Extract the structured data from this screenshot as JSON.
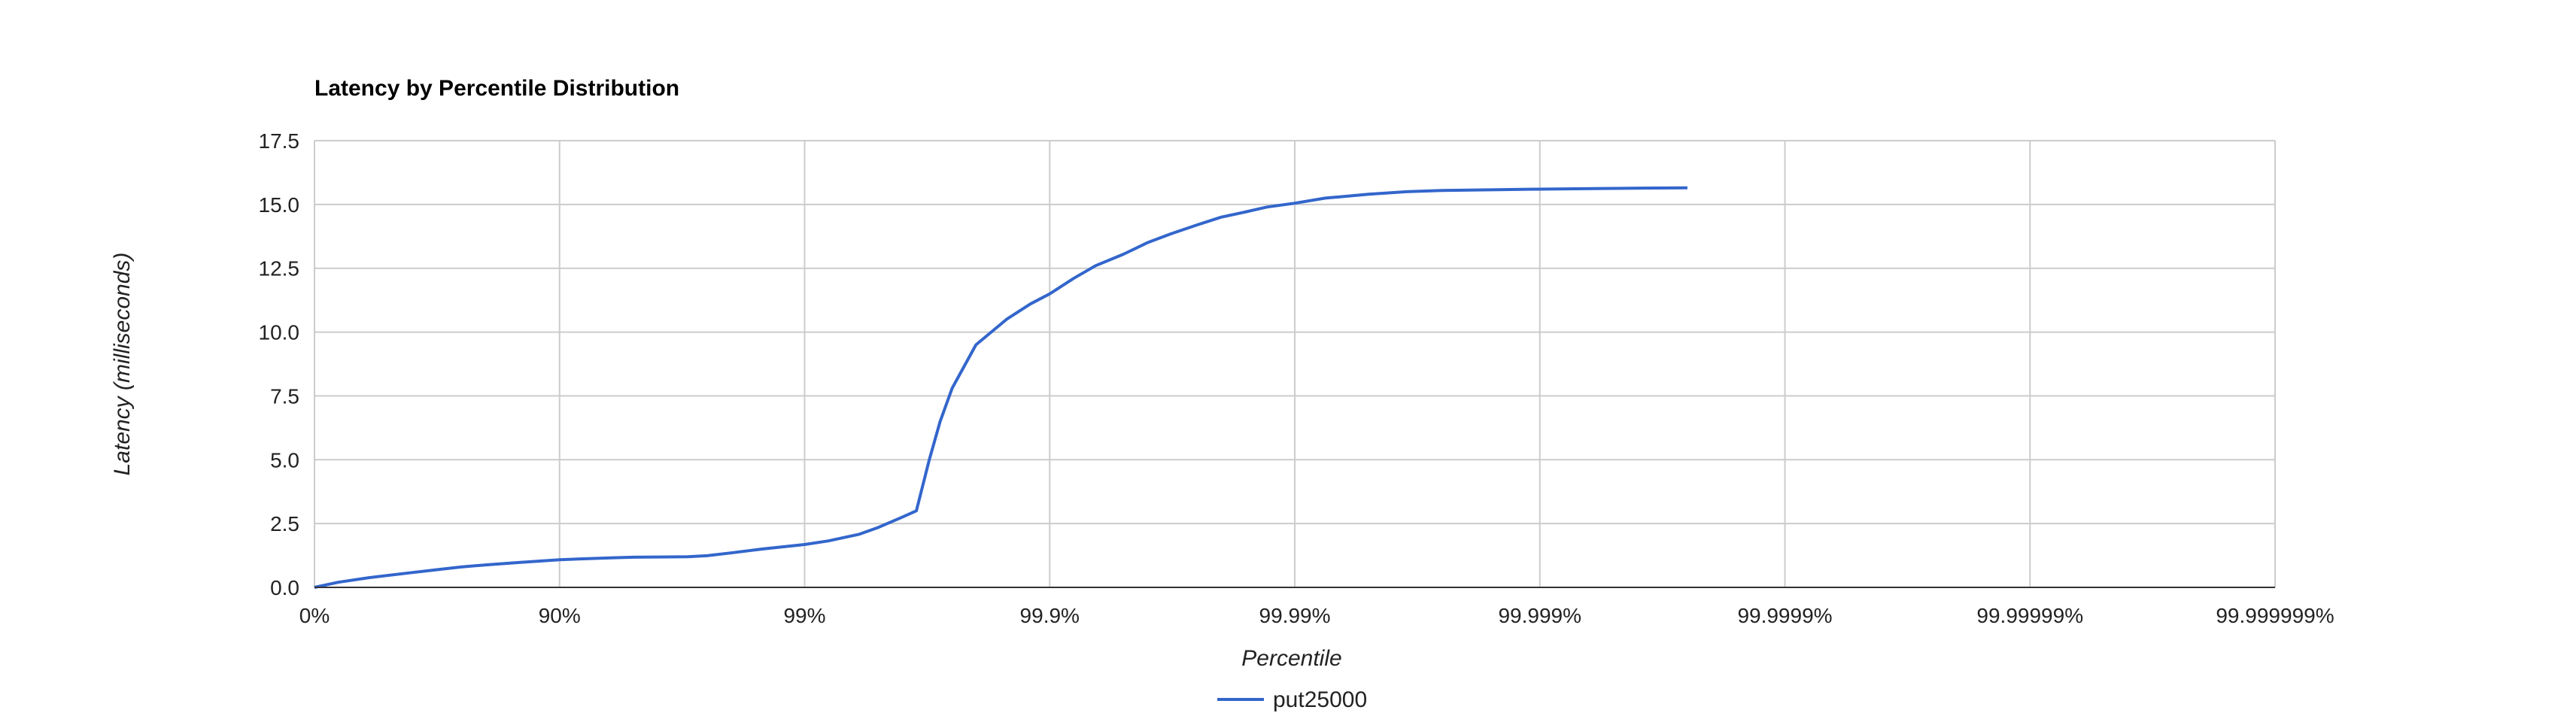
{
  "chart_data": {
    "type": "line",
    "title": "Latency by Percentile Distribution",
    "xlabel": "Percentile",
    "ylabel": "Latency (milliseconds)",
    "x_scale": "log-nines",
    "x_ticks": [
      "0%",
      "90%",
      "99%",
      "99.9%",
      "99.99%",
      "99.999%",
      "99.9999%",
      "99.99999%",
      "99.999999%"
    ],
    "x_tick_values": [
      0,
      90,
      99,
      99.9,
      99.99,
      99.999,
      99.9999,
      99.99999,
      99.999999
    ],
    "y_ticks": [
      "0.0",
      "2.5",
      "5.0",
      "7.5",
      "10.0",
      "12.5",
      "15.0",
      "17.5"
    ],
    "ylim": [
      0,
      17.5
    ],
    "grid": true,
    "legend_position": "bottom",
    "colors": {
      "series": "#3366cc",
      "grid": "#cccccc",
      "baseline": "#333333"
    },
    "series": [
      {
        "name": "put25000",
        "x": [
          0,
          20,
          40,
          60,
          70,
          75,
          80,
          85,
          88,
          90,
          92,
          94,
          95,
          96,
          97,
          97.5,
          98,
          98.5,
          98.8,
          99,
          99.2,
          99.4,
          99.5,
          99.6,
          99.65,
          99.69,
          99.72,
          99.75,
          99.8,
          99.85,
          99.88,
          99.9,
          99.92,
          99.935,
          99.95,
          99.96,
          99.968,
          99.975,
          99.98,
          99.984,
          99.987,
          99.99,
          99.9925,
          99.995,
          99.9965,
          99.9975,
          99.9985,
          99.999,
          99.9994,
          99.99962,
          99.99975
        ],
        "y": [
          0.0,
          0.2,
          0.38,
          0.58,
          0.72,
          0.8,
          0.88,
          0.97,
          1.03,
          1.08,
          1.12,
          1.16,
          1.18,
          1.19,
          1.2,
          1.24,
          1.35,
          1.5,
          1.6,
          1.68,
          1.82,
          2.08,
          2.35,
          2.75,
          3.0,
          5.0,
          6.5,
          7.8,
          9.5,
          10.5,
          11.1,
          11.5,
          12.1,
          12.6,
          13.05,
          13.5,
          13.85,
          14.2,
          14.5,
          14.7,
          14.9,
          15.05,
          15.25,
          15.4,
          15.5,
          15.55,
          15.58,
          15.6,
          15.62,
          15.64,
          15.65
        ]
      }
    ]
  }
}
